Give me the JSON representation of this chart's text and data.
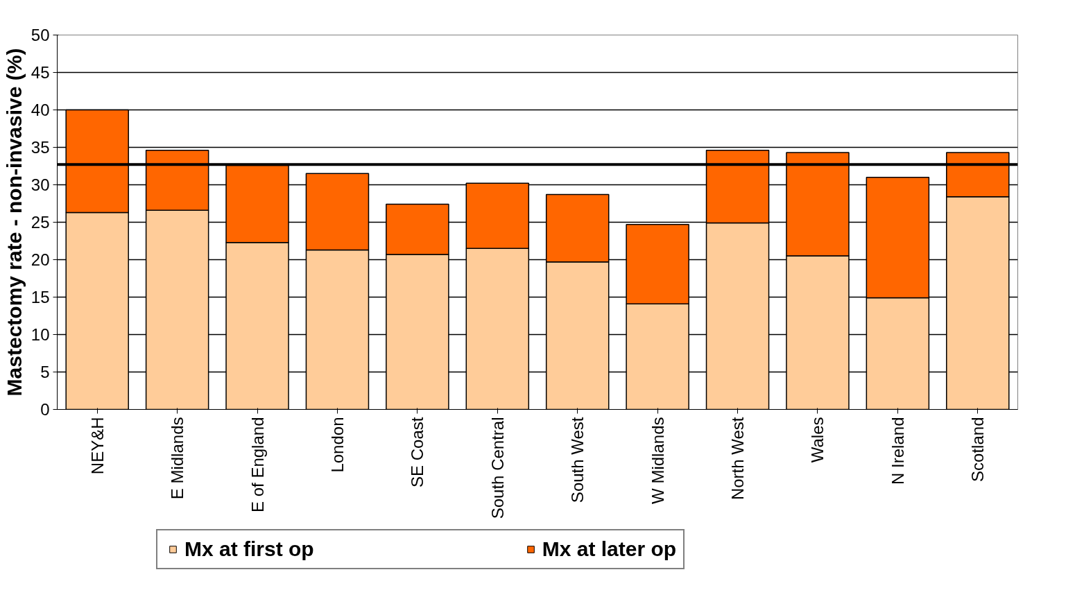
{
  "chart_data": {
    "type": "bar",
    "stacked": true,
    "ylabel": "Mastectomy rate - non-invasive (%)",
    "categories": [
      "NEY&H",
      "E Midlands",
      "E of England",
      "London",
      "SE Coast",
      "South Central",
      "South West",
      "W Midlands",
      "North West",
      "Wales",
      "N Ireland",
      "Scotland"
    ],
    "series": [
      {
        "name": "Mx at first op",
        "color": "#ffcc99",
        "values": [
          26.3,
          26.6,
          22.3,
          21.3,
          20.7,
          21.5,
          19.7,
          14.1,
          24.9,
          20.5,
          14.9,
          28.4
        ]
      },
      {
        "name": "Mx at later op",
        "color": "#ff6600",
        "values": [
          13.7,
          8.0,
          10.3,
          10.2,
          6.7,
          8.7,
          9.0,
          10.6,
          9.7,
          13.8,
          16.1,
          5.9
        ]
      }
    ],
    "ylim": [
      0,
      50
    ],
    "yticks": [
      0,
      5,
      10,
      15,
      20,
      25,
      30,
      35,
      40,
      45,
      50
    ],
    "ref_lines": [
      {
        "axis": "y",
        "value": 32.7,
        "color": "#000000"
      }
    ],
    "grid": "y",
    "legend": "bottom"
  }
}
